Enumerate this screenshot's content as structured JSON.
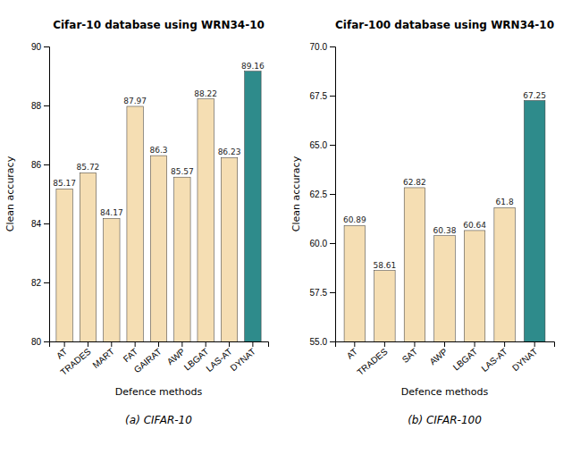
{
  "chart_data": [
    {
      "type": "bar",
      "title": "Cifar-10 database using WRN34-10",
      "x_label": "Defence methods",
      "y_label": "Clean accuracy",
      "categories": [
        "AT",
        "TRADES",
        "MART",
        "FAT",
        "GAIRAT",
        "AWP",
        "LBGAT",
        "LAS-AT",
        "DYNAT"
      ],
      "values": [
        85.17,
        85.72,
        84.17,
        87.97,
        86.3,
        85.57,
        88.22,
        86.23,
        89.16
      ],
      "colors": [
        "#f5deb3",
        "#f5deb3",
        "#f5deb3",
        "#f5deb3",
        "#f5deb3",
        "#f5deb3",
        "#f5deb3",
        "#f5deb3",
        "#2e8b8b"
      ],
      "ylim": [
        80,
        90
      ],
      "yticks": [
        80,
        82,
        84,
        86,
        88,
        90
      ],
      "data_labels": true,
      "annotations": [
        "(a) CIFAR-10"
      ]
    },
    {
      "type": "bar",
      "title": "Cifar-100 database using WRN34-10",
      "x_label": "Defence methods",
      "y_label": "Clean accuracy",
      "categories": [
        "AT",
        "TRADES",
        "SAT",
        "AWP",
        "LBGAT",
        "LAS-AT",
        "DYNAT"
      ],
      "values": [
        60.89,
        58.61,
        62.82,
        60.38,
        60.64,
        61.8,
        67.25
      ],
      "colors": [
        "#f5deb3",
        "#f5deb3",
        "#f5deb3",
        "#f5deb3",
        "#f5deb3",
        "#f5deb3",
        "#2e8b8b"
      ],
      "ylim": [
        55.0,
        70.0
      ],
      "yticks": [
        {
          "value": 55.0,
          "label": "55.0"
        },
        {
          "value": 57.5,
          "label": "57.5"
        },
        {
          "value": 60.0,
          "label": "60.0"
        },
        {
          "value": 62.5,
          "label": "62.5"
        },
        {
          "value": 65.0,
          "label": "65.0"
        },
        {
          "value": 67.5,
          "label": "67.5"
        },
        {
          "value": 70.0,
          "label": "70.0"
        }
      ],
      "data_labels": true,
      "annotations": [
        "(b) CIFAR-100"
      ]
    }
  ]
}
